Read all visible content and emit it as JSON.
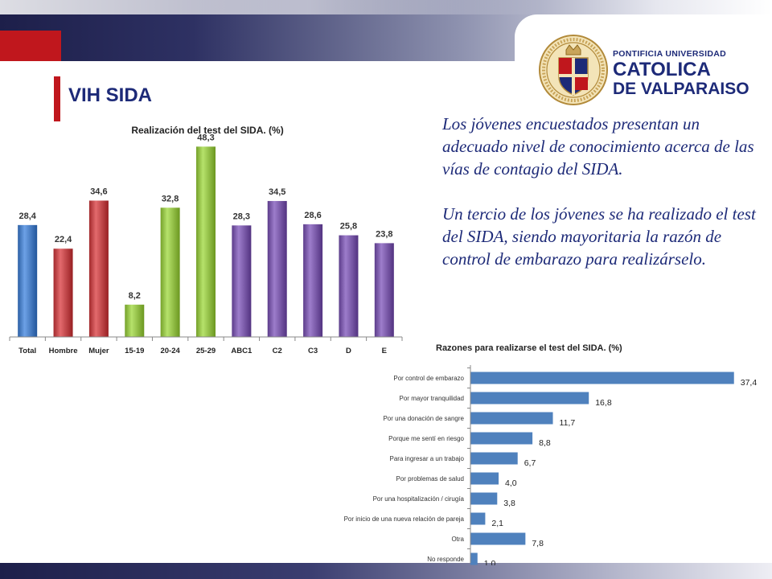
{
  "header": {
    "title": "VIH SIDA",
    "institution": {
      "line1": "PONTIFICIA UNIVERSIDAD",
      "line2": "CATOLICA",
      "line3": "DE VALPARAISO"
    }
  },
  "text_block": {
    "paragraph1": "Los jóvenes encuestados presentan un adecuado nivel de conocimiento acerca de las vías de contagio del SIDA.",
    "paragraph2": "Un tercio de los jóvenes se ha realizado el test del SIDA, siendo mayoritaria la razón de control de embarazo para realizárselo."
  },
  "chart_data": [
    {
      "type": "bar",
      "title": "Realización del test del SIDA. (%)",
      "categories": [
        "Total",
        "Hombre",
        "Mujer",
        "15-19",
        "20-24",
        "25-29",
        "ABC1",
        "C2",
        "C3",
        "D",
        "E"
      ],
      "values": [
        28.4,
        22.4,
        34.6,
        8.2,
        32.8,
        48.3,
        28.3,
        34.5,
        28.6,
        25.8,
        23.8
      ],
      "value_labels": [
        "28,4",
        "22,4",
        "34,6",
        "8,2",
        "32,8",
        "48,3",
        "28,3",
        "34,5",
        "28,6",
        "25,8",
        "23,8"
      ],
      "bar_colors": [
        "#4a7ec3",
        "#c0474a",
        "#c0474a",
        "#93bf48",
        "#93bf48",
        "#93bf48",
        "#7a5aa8",
        "#7a5aa8",
        "#7a5aa8",
        "#7a5aa8",
        "#7a5aa8"
      ],
      "ylim": [
        0,
        50
      ],
      "grid": false,
      "legend": "none"
    },
    {
      "type": "bar",
      "orientation": "horizontal",
      "title": "Razones para realizarse el test del SIDA. (%)",
      "categories": [
        "Por control de embarazo",
        "Por mayor tranquilidad",
        "Por una donación de sangre",
        "Porque me sentí en riesgo",
        "Para ingresar a un trabajo",
        "Por problemas de salud",
        "Por una hospitalización / cirugía",
        "Por inicio de una nueva relación de pareja",
        "Otra",
        "No responde"
      ],
      "values": [
        37.4,
        16.8,
        11.7,
        8.8,
        6.7,
        4.0,
        3.8,
        2.1,
        7.8,
        1.0
      ],
      "value_labels": [
        "37,4",
        "16,8",
        "11,7",
        "8,8",
        "6,7",
        "4,0",
        "3,8",
        "2,1",
        "7,8",
        "1,0"
      ],
      "bar_color": "#4f81bd",
      "xlim": [
        0,
        38
      ],
      "grid": false,
      "legend": "none"
    }
  ]
}
